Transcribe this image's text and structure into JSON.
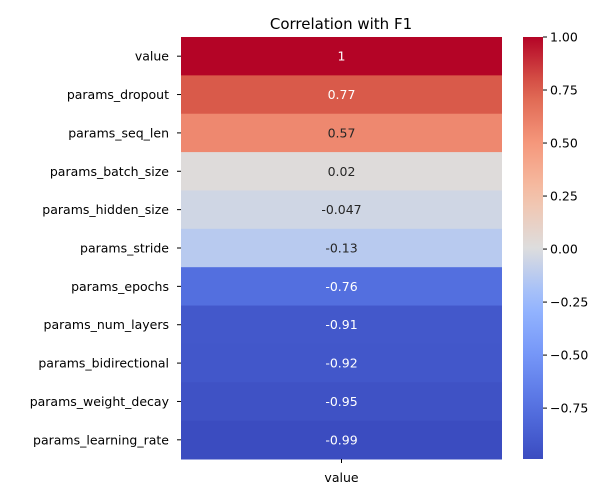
{
  "chart_data": {
    "type": "heatmap",
    "title": "Correlation with F1",
    "colormap": "coolwarm",
    "x_categories": [
      "value"
    ],
    "y_categories": [
      "value",
      "params_dropout",
      "params_seq_len",
      "params_batch_size",
      "params_hidden_size",
      "params_stride",
      "params_epochs",
      "params_num_layers",
      "params_bidirectional",
      "params_weight_decay",
      "params_learning_rate"
    ],
    "values": [
      1,
      0.77,
      0.57,
      0.02,
      -0.047,
      -0.13,
      -0.76,
      -0.91,
      -0.92,
      -0.95,
      -0.99
    ],
    "value_labels": [
      "1",
      "0.77",
      "0.57",
      "0.02",
      "-0.047",
      "-0.13",
      "-0.76",
      "-0.91",
      "-0.92",
      "-0.95",
      "-0.99"
    ],
    "colorbar": {
      "range": [
        -0.99,
        1.0
      ],
      "ticks": [
        1.0,
        0.75,
        0.5,
        0.25,
        0.0,
        -0.25,
        -0.5,
        -0.75
      ],
      "tick_labels": [
        "1.00",
        "0.75",
        "0.50",
        "0.25",
        "0.00",
        "−0.25",
        "−0.50",
        "−0.75"
      ]
    }
  }
}
